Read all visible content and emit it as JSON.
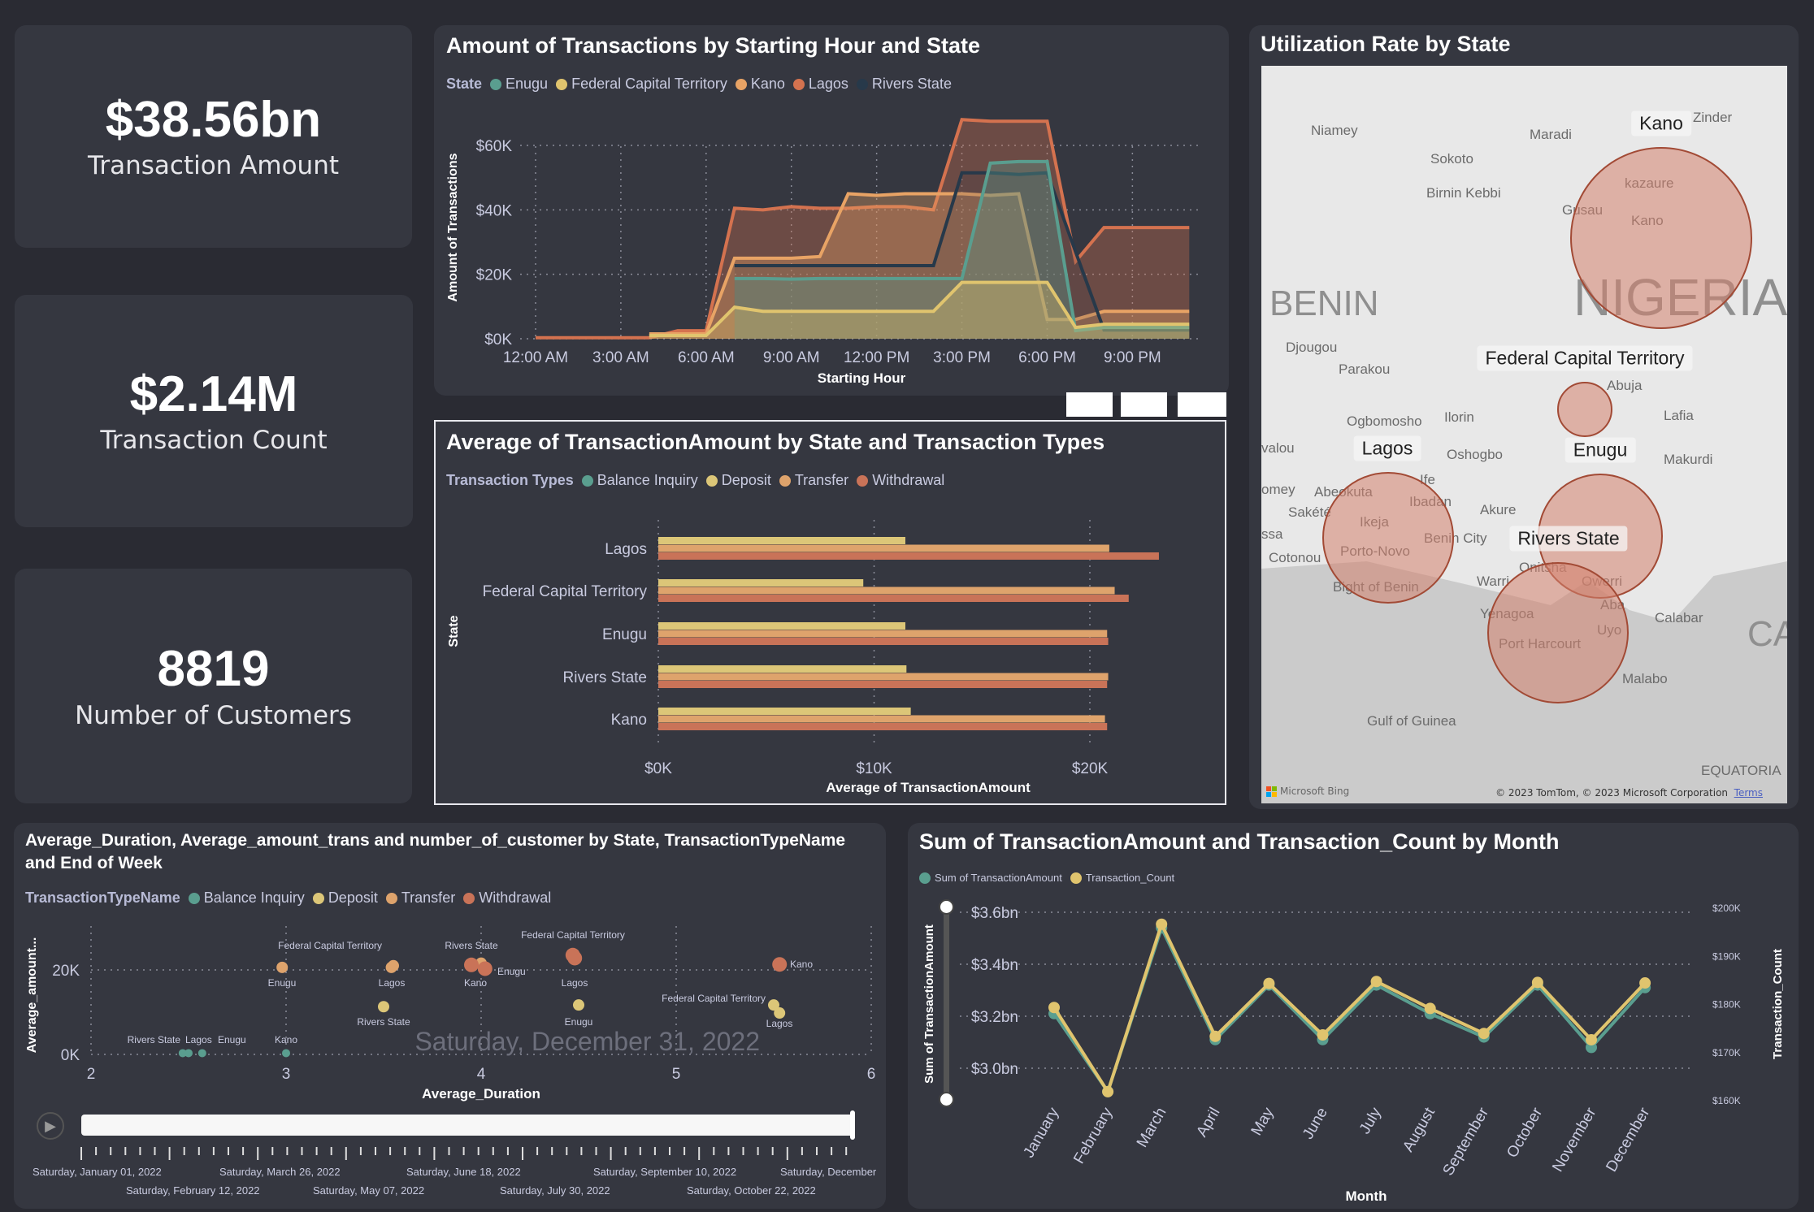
{
  "kpis": [
    {
      "value": "$38.56bn",
      "label": "Transaction Amount"
    },
    {
      "value": "$2.14M",
      "label": "Transaction Count"
    },
    {
      "value": "8819",
      "label": "Number of Customers"
    }
  ],
  "colors": {
    "page_bg": "#2a2b33",
    "card_bg": "#353740",
    "Enugu": "#5a9e8f",
    "Federal Capital Territory": "#e0c46e",
    "Kano": "#e8a365",
    "Lagos": "#d4724f",
    "Rivers State": "#27394a",
    "Balance Inquiry": "#5a9e8f",
    "Deposit": "#dcc678",
    "Transfer": "#dea36c",
    "Withdrawal": "#c97358"
  },
  "map": {
    "title": "Utilization Rate by State",
    "bubbles": [
      {
        "state": "Kano"
      },
      {
        "state": "Federal Capital Territory"
      },
      {
        "state": "Enugu"
      },
      {
        "state": "Rivers State"
      },
      {
        "state": "Lagos"
      }
    ],
    "places": [
      "Niamey",
      "Sokoto",
      "Birnin Kebbi",
      "Maradi",
      "Zinder",
      "kazaure",
      "Kano",
      "Gusau",
      "BENIN",
      "NIGERIA",
      "Djougou",
      "Parakou",
      "Abuja",
      "Lafia",
      "Ilorin",
      "Ogbomosho",
      "Oshogbo",
      "Makurdi",
      "Abeokuta",
      "Ibadan",
      "Ife",
      "Akure",
      "Ikeja",
      "Porto-Novo",
      "Cotonou",
      "Benin City",
      "Warri",
      "Onitsha",
      "Owerri",
      "Aba",
      "Uyo",
      "Yenagoa",
      "Port Harcourt",
      "Calabar",
      "Malabo",
      "Bight of Benin",
      "Gulf of Guinea",
      "CA",
      "valou",
      "omey",
      "Sakété",
      "ssa",
      "EQUATORIA"
    ],
    "attribution": "© 2023 TomTom, © 2023 Microsoft Corporation",
    "terms": "Terms",
    "logo": "Microsoft Bing"
  },
  "chart_data": [
    {
      "type": "area",
      "title": "Amount of Transactions by Starting Hour and State",
      "legend_title": "State",
      "xlabel": "Starting Hour",
      "ylabel": "Amount of Transactions",
      "x": [
        0,
        1,
        2,
        3,
        4,
        5,
        6,
        7,
        8,
        9,
        10,
        11,
        12,
        13,
        14,
        15,
        16,
        17,
        18,
        19,
        20,
        21,
        22,
        23
      ],
      "x_ticks": [
        {
          "hour": 0,
          "label": "12:00 AM"
        },
        {
          "hour": 3,
          "label": "3:00 AM"
        },
        {
          "hour": 6,
          "label": "6:00 AM"
        },
        {
          "hour": 9,
          "label": "9:00 AM"
        },
        {
          "hour": 12,
          "label": "12:00 PM"
        },
        {
          "hour": 15,
          "label": "3:00 PM"
        },
        {
          "hour": 18,
          "label": "6:00 PM"
        },
        {
          "hour": 21,
          "label": "9:00 PM"
        }
      ],
      "y_ticks": [
        {
          "value": 0,
          "label": "$0K"
        },
        {
          "value": 20000,
          "label": "$20K"
        },
        {
          "value": 40000,
          "label": "$40K"
        },
        {
          "value": 60000,
          "label": "$60K"
        }
      ],
      "ylim": [
        0,
        70000
      ],
      "grid": true,
      "legend": "top-left",
      "series": [
        {
          "name": "Lagos",
          "values": [
            300,
            300,
            300,
            300,
            300,
            2500,
            2500,
            40500,
            40000,
            41000,
            40500,
            40500,
            41000,
            41000,
            40000,
            68000,
            67500,
            67500,
            67500,
            24000,
            34500,
            34500,
            34500,
            34500
          ]
        },
        {
          "name": "Kano",
          "values": [
            null,
            null,
            null,
            null,
            1500,
            1500,
            1500,
            25000,
            25000,
            25000,
            25500,
            45000,
            44500,
            45000,
            45000,
            45000,
            44500,
            45000,
            6000,
            6000,
            8500,
            8500,
            8500,
            8500
          ]
        },
        {
          "name": "Rivers State",
          "values": [
            null,
            null,
            null,
            null,
            null,
            null,
            null,
            22700,
            22700,
            22700,
            22700,
            22700,
            22700,
            22700,
            22700,
            51500,
            51500,
            51000,
            51500,
            27000,
            2700,
            2700,
            2700,
            2700
          ]
        },
        {
          "name": "Enugu",
          "values": [
            null,
            null,
            null,
            null,
            null,
            null,
            null,
            18700,
            18700,
            18500,
            18700,
            18700,
            18700,
            18700,
            18700,
            18700,
            54500,
            55000,
            55000,
            2500,
            3500,
            3500,
            3500,
            3500
          ]
        },
        {
          "name": "Federal Capital Territory",
          "values": [
            null,
            null,
            null,
            null,
            1000,
            1000,
            1000,
            9800,
            8500,
            8500,
            8500,
            8500,
            8500,
            8500,
            8500,
            17500,
            17500,
            17500,
            17500,
            3500,
            4500,
            4500,
            4500,
            4500
          ]
        }
      ],
      "legend_order": [
        "Enugu",
        "Federal Capital Territory",
        "Kano",
        "Lagos",
        "Rivers State"
      ]
    },
    {
      "type": "bar",
      "orientation": "horizontal",
      "title": "Average of TransactionAmount by State and Transaction Types",
      "legend_title": "Transaction Types",
      "xlabel": "Average of TransactionAmount",
      "ylabel": "State",
      "categories": [
        "Lagos",
        "Federal Capital Territory",
        "Enugu",
        "Rivers State",
        "Kano"
      ],
      "x_ticks": [
        {
          "value": 0,
          "label": "$0K"
        },
        {
          "value": 10000,
          "label": "$10K"
        },
        {
          "value": 20000,
          "label": "$20K"
        }
      ],
      "xlim": [
        0,
        25000
      ],
      "grid": true,
      "legend": "top-left",
      "legend_order": [
        "Balance Inquiry",
        "Deposit",
        "Transfer",
        "Withdrawal"
      ],
      "series": [
        {
          "name": "Deposit",
          "values": [
            11450,
            9500,
            11450,
            11500,
            11700
          ]
        },
        {
          "name": "Transfer",
          "values": [
            20900,
            21150,
            20800,
            20850,
            20700
          ]
        },
        {
          "name": "Withdrawal",
          "values": [
            23200,
            21800,
            20850,
            20800,
            20800
          ]
        }
      ]
    },
    {
      "type": "scatter",
      "title": "Average_Duration, Average_amount_trans and number_of_customer by State, TransactionTypeName and End of Week",
      "legend_title": "TransactionTypeName",
      "xlabel": "Average_Duration",
      "ylabel": "Average_amount...",
      "xlim": [
        2,
        6
      ],
      "ylim": [
        0,
        25000
      ],
      "grid": true,
      "legend": "top-left",
      "x_ticks": [
        2,
        3,
        4,
        5,
        6
      ],
      "y_ticks": [
        {
          "value": 0,
          "label": "0K"
        },
        {
          "value": 20000,
          "label": "20K"
        }
      ],
      "legend_order": [
        "Balance Inquiry",
        "Deposit",
        "Transfer",
        "Withdrawal"
      ],
      "play_axis_label": "Saturday, December 31, 2022",
      "timeline_labels": [
        "Saturday, January 01, 2022",
        "Saturday, February 12, 2022",
        "Saturday, March 26, 2022",
        "Saturday, May 07, 2022",
        "Saturday, June 18, 2022",
        "Saturday, July 30, 2022",
        "Saturday, September 10, 2022",
        "Saturday, October 22, 2022",
        "Saturday, December"
      ],
      "points": [
        {
          "state": "Rivers State",
          "type": "Balance Inquiry",
          "x": 2.47,
          "y": 300
        },
        {
          "state": "Lagos",
          "type": "Balance Inquiry",
          "x": 2.5,
          "y": 300
        },
        {
          "state": "Enugu",
          "type": "Balance Inquiry",
          "x": 2.57,
          "y": 300
        },
        {
          "state": "Kano",
          "type": "Balance Inquiry",
          "x": 3.0,
          "y": 300
        },
        {
          "state": "Rivers State",
          "type": "Deposit",
          "x": 3.5,
          "y": 11300
        },
        {
          "state": "Enugu",
          "type": "Deposit",
          "x": 4.5,
          "y": 11700
        },
        {
          "state": "Federal Capital Territory",
          "type": "Deposit",
          "x": 5.5,
          "y": 11700
        },
        {
          "state": "Lagos",
          "type": "Deposit",
          "x": 5.53,
          "y": 9800
        },
        {
          "state": "Enugu",
          "type": "Transfer",
          "x": 2.98,
          "y": 20600
        },
        {
          "state": "Federal Capital Territory",
          "type": "Transfer",
          "x": 3.55,
          "y": 21000
        },
        {
          "state": "Lagos",
          "type": "Transfer",
          "x": 3.54,
          "y": 20600
        },
        {
          "state": "Kano",
          "type": "Transfer",
          "x": 4.0,
          "y": 21600
        },
        {
          "state": "Rivers State",
          "type": "Withdrawal",
          "x": 3.95,
          "y": 21200
        },
        {
          "state": "Enugu",
          "type": "Withdrawal",
          "x": 4.02,
          "y": 20300
        },
        {
          "state": "Federal Capital Territory",
          "type": "Withdrawal",
          "x": 4.47,
          "y": 23500
        },
        {
          "state": "Lagos",
          "type": "Withdrawal",
          "x": 4.48,
          "y": 22800
        },
        {
          "state": "Kano",
          "type": "Withdrawal",
          "x": 5.53,
          "y": 21300
        }
      ]
    },
    {
      "type": "line",
      "title": "Sum of TransactionAmount and Transaction_Count by Month",
      "xlabel": "Month",
      "ylabel": "Sum of TransactionAmount",
      "y2label": "Transaction_Count",
      "categories": [
        "January",
        "February",
        "March",
        "April",
        "May",
        "June",
        "July",
        "August",
        "September",
        "October",
        "November",
        "December"
      ],
      "ylim": [
        2.9,
        3.62
      ],
      "y_ticks": [
        {
          "value": 3.0,
          "label": "$3.0bn"
        },
        {
          "value": 3.2,
          "label": "$3.2bn"
        },
        {
          "value": 3.4,
          "label": "$3.4bn"
        },
        {
          "value": 3.6,
          "label": "$3.6bn"
        }
      ],
      "y2lim": [
        160000,
        200000
      ],
      "y2_ticks": [
        {
          "value": 160000,
          "label": "$160K"
        },
        {
          "value": 170000,
          "label": "$170K"
        },
        {
          "value": 180000,
          "label": "$180K"
        },
        {
          "value": 190000,
          "label": "$190K"
        },
        {
          "value": 200000,
          "label": "$200K"
        }
      ],
      "grid": true,
      "legend": "top-left",
      "series": [
        {
          "name": "Sum of TransactionAmount",
          "axis": "left",
          "unit": "bn",
          "values": [
            3.21,
            2.91,
            3.54,
            3.11,
            3.32,
            3.11,
            3.32,
            3.21,
            3.12,
            3.32,
            3.08,
            3.31
          ]
        },
        {
          "name": "Transaction_Count",
          "axis": "right",
          "values": [
            179200,
            161700,
            196500,
            173200,
            184200,
            173500,
            184600,
            179000,
            173800,
            184400,
            172500,
            184300
          ]
        }
      ]
    }
  ]
}
